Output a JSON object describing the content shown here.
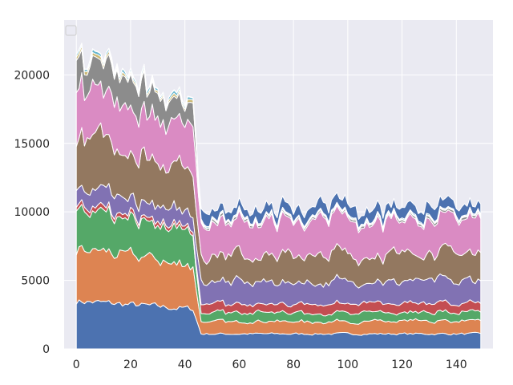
{
  "chart_data": {
    "type": "area",
    "stacked": true,
    "style": "seaborn-darkgrid",
    "background": "#eaeaf2",
    "grid": true,
    "grid_color": "#ffffff",
    "legend": {
      "placement": "top-left",
      "entries": []
    },
    "xlim": [
      -4.5,
      153.5
    ],
    "ylim": [
      0,
      24000
    ],
    "xticks": [
      0,
      20,
      40,
      60,
      80,
      100,
      120,
      140
    ],
    "xtick_labels": [
      "0",
      "20",
      "40",
      "60",
      "80",
      "100",
      "120",
      "140"
    ],
    "yticks": [
      0,
      5000,
      10000,
      15000,
      20000
    ],
    "ytick_labels": [
      "0",
      "5000",
      "10000",
      "15000",
      "20000"
    ],
    "x_start": 0,
    "x_end": 149,
    "drop_at": 46,
    "series": [
      {
        "color": "#4c72b0",
        "level_before": 3500,
        "level_after": 1100,
        "amplitude": 0.12
      },
      {
        "color": "#dd8452",
        "level_before": 3800,
        "level_after": 900,
        "amplitude": 0.2
      },
      {
        "color": "#55a868",
        "level_before": 2900,
        "level_after": 650,
        "amplitude": 0.25
      },
      {
        "color": "#c44e52",
        "level_before": 300,
        "level_after": 650,
        "amplitude": 0.3
      },
      {
        "color": "#8172b3",
        "level_before": 1300,
        "level_after": 1600,
        "amplitude": 0.3
      },
      {
        "color": "#937860",
        "level_before": 3800,
        "level_after": 2000,
        "amplitude": 0.3
      },
      {
        "color": "#da8bc3",
        "level_before": 3700,
        "level_after": 2500,
        "amplitude": 0.25
      },
      {
        "color": "#8c8c8c",
        "level_before": 2000,
        "level_after": 150,
        "amplitude": 0.4
      },
      {
        "color": "#ccb974",
        "level_before": 220,
        "level_after": 60,
        "amplitude": 0.4
      },
      {
        "color": "#64b5cd",
        "level_before": 200,
        "level_after": 80,
        "amplitude": 0.4
      },
      {
        "color": "#4c72b0",
        "level_before": 40,
        "level_after": 700,
        "amplitude": 0.5
      }
    ]
  }
}
